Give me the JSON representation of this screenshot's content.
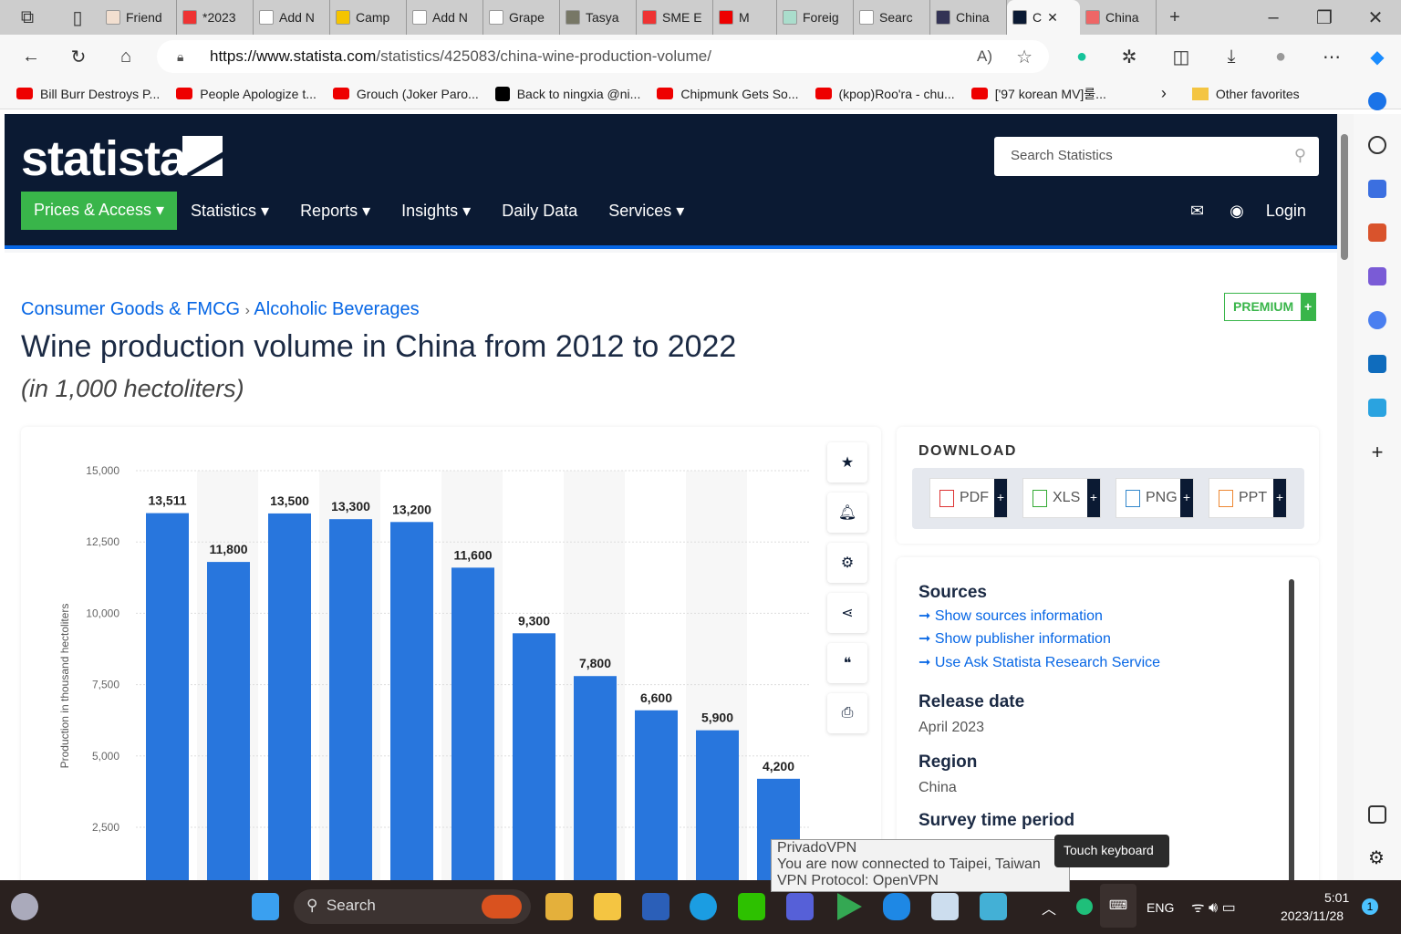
{
  "browser": {
    "tabs": [
      {
        "label": "Friend",
        "color": "#f2dfd0"
      },
      {
        "label": "*2023",
        "color": "#e33"
      },
      {
        "label": "Add N",
        "color": "#fff"
      },
      {
        "label": "Camp",
        "color": "#f5c400"
      },
      {
        "label": "Add N",
        "color": "#fff"
      },
      {
        "label": "Grape",
        "color": "#fff"
      },
      {
        "label": "Tasya",
        "color": "#776"
      },
      {
        "label": "SME E",
        "color": "#e33"
      },
      {
        "label": "M",
        "color": "#e00"
      },
      {
        "label": "Foreig",
        "color": "#adc"
      },
      {
        "label": "Searc",
        "color": "#fff"
      },
      {
        "label": "China",
        "color": "#335"
      },
      {
        "label": "C",
        "color": "#0b1a33"
      },
      {
        "label": "China",
        "color": "#e66"
      }
    ],
    "url_domain": "https://www.statista.com",
    "url_path": "/statistics/425083/china-wine-production-volume/",
    "bookmarks": [
      "Bill Burr Destroys P...",
      "People Apologize t...",
      "Grouch (Joker Paro...",
      "Back to ningxia @ni...",
      "Chipmunk Gets So...",
      "(kpop)Roo'ra - chu...",
      "['97 korean MV]룰..."
    ],
    "other_favorites": "Other favorites"
  },
  "site": {
    "logo": "statista",
    "search_placeholder": "Search Statistics",
    "nav": {
      "prices": "Prices & Access ▾",
      "items": [
        "Statistics ▾",
        "Reports ▾",
        "Insights ▾",
        "Daily Data",
        "Services ▾"
      ],
      "login": "Login"
    },
    "breadcrumb": [
      "Consumer Goods & FMCG",
      "Alcoholic Beverages"
    ],
    "premium": "PREMIUM",
    "title": "Wine production volume in China from 2012 to 2022",
    "subtitle": "(in 1,000 hectoliters)",
    "download": {
      "heading": "DOWNLOAD",
      "buttons": [
        "PDF",
        "XLS",
        "PNG",
        "PPT"
      ]
    },
    "sources": {
      "heading": "Sources",
      "links": [
        "Show sources information",
        "Show publisher information",
        "Use Ask Statista Research Service"
      ]
    },
    "release": {
      "heading": "Release date",
      "value": "April 2023"
    },
    "region": {
      "heading": "Region",
      "value": "China"
    },
    "survey": {
      "heading": "Survey time period"
    }
  },
  "chart_data": {
    "type": "bar",
    "values": [
      13511,
      11800,
      13500,
      13300,
      13200,
      11600,
      9300,
      7800,
      6600,
      5900,
      4200
    ],
    "labels": [
      "13,511",
      "11,800",
      "13,500",
      "13,300",
      "13,200",
      "11,600",
      "9,300",
      "7,800",
      "6,600",
      "5,900",
      "4,200"
    ],
    "ylabel": "Production in thousand hectoliters",
    "yticks": [
      {
        "v": 15000,
        "t": "15,000"
      },
      {
        "v": 12500,
        "t": "12,500"
      },
      {
        "v": 10000,
        "t": "10,000"
      },
      {
        "v": 7500,
        "t": "7,500"
      },
      {
        "v": 5000,
        "t": "5,000"
      },
      {
        "v": 2500,
        "t": "2,500"
      }
    ],
    "ylim": [
      0,
      15000
    ],
    "bar_color": "#2876dd"
  },
  "system": {
    "search": "Search",
    "toast": [
      "PrivadoVPN",
      "You are now connected to Taipei, Taiwan",
      "VPN Protocol: OpenVPN"
    ],
    "tooltip": "Touch keyboard",
    "lang": "ENG",
    "time": "5:01",
    "date": "2023/11/28",
    "badge": "1"
  }
}
